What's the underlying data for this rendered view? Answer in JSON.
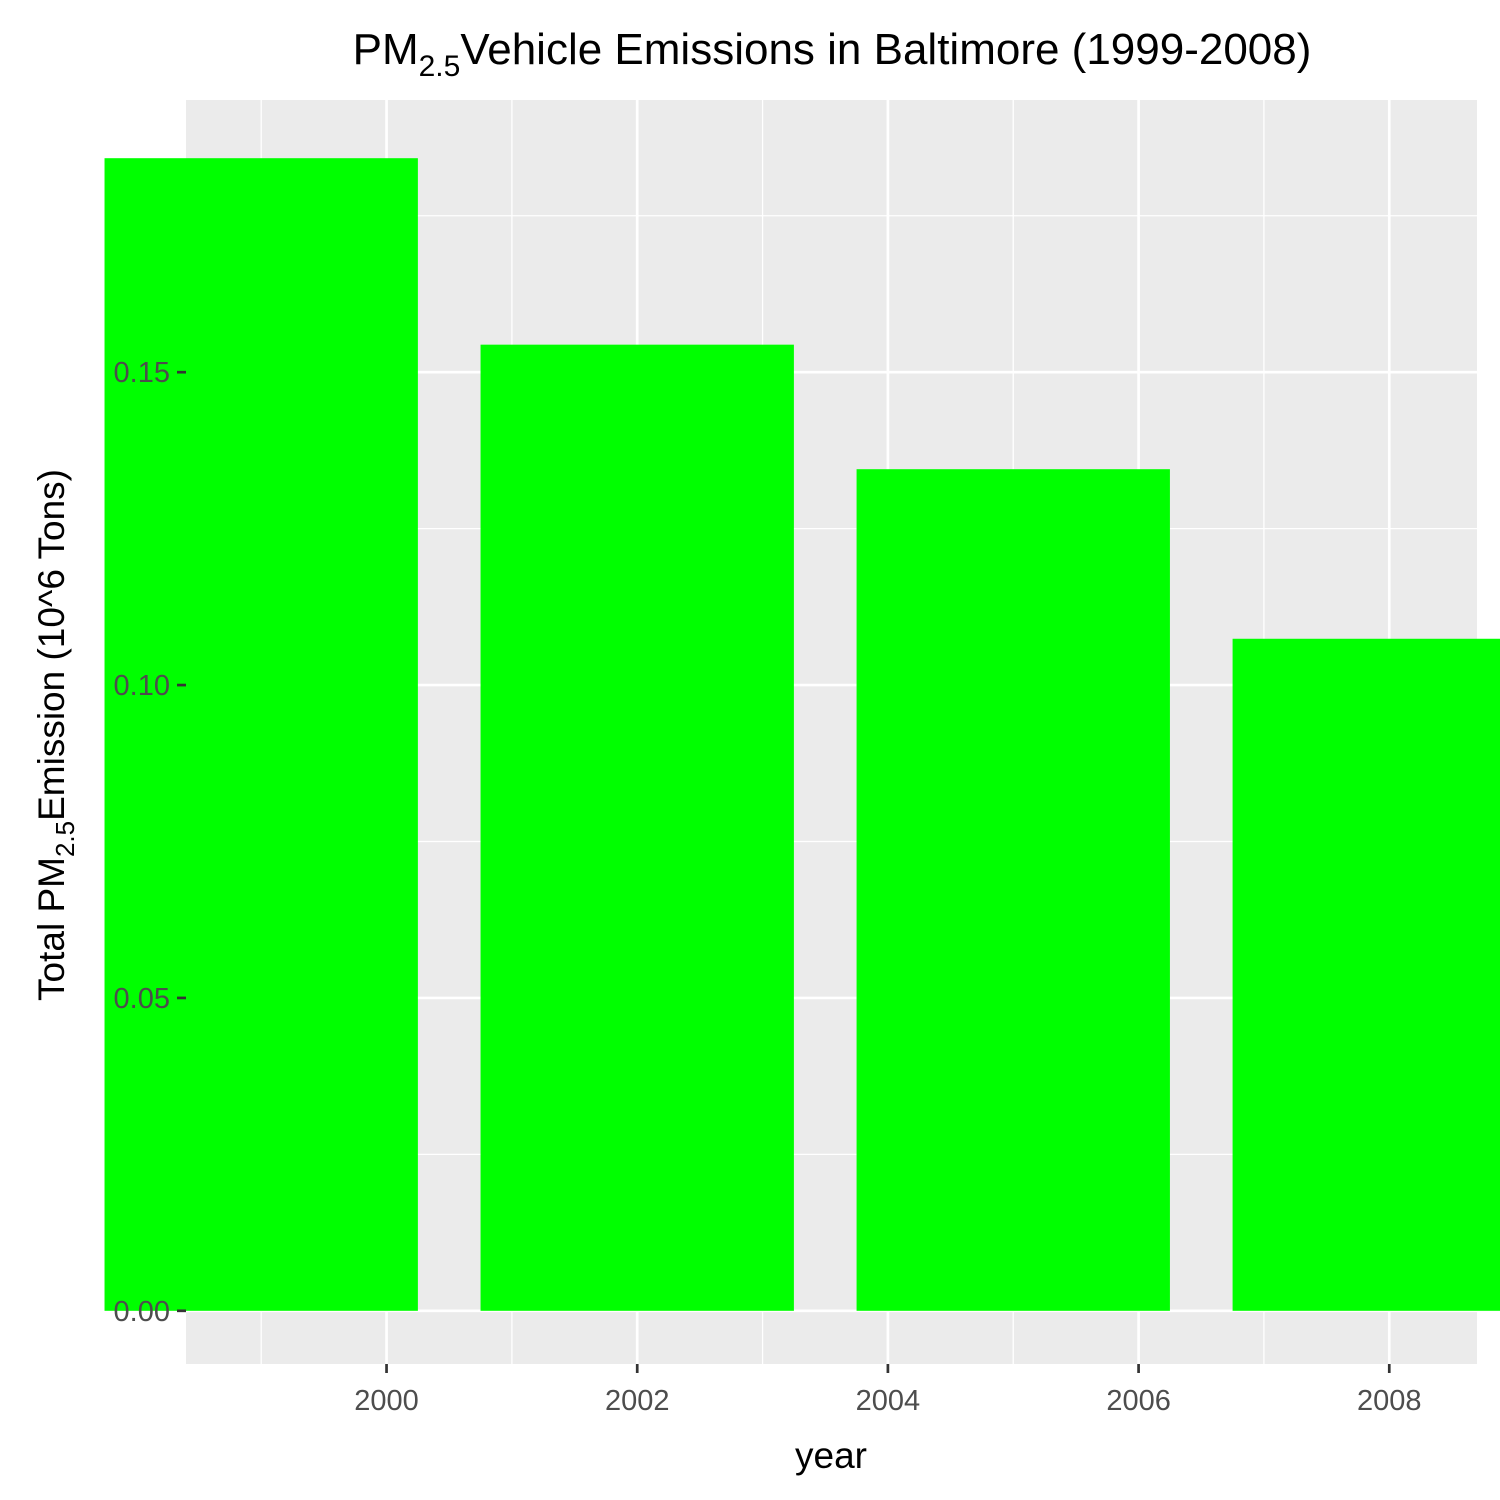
{
  "chart_data": {
    "type": "bar",
    "title": {
      "prefix": "PM",
      "subscript": "2.5",
      "suffix": "Vehicle Emissions in Baltimore (1999-2008)"
    },
    "xlabel": "year",
    "ylabel": {
      "prefix": "Total PM",
      "subscript": "2.5",
      "suffix": "Emission (10^6 Tons)"
    },
    "x": [
      1999,
      2002,
      2005,
      2008
    ],
    "values": [
      0.1842,
      0.1544,
      0.1345,
      0.1074
    ],
    "xlim": [
      1998.4,
      2008.7
    ],
    "ylim": [
      -0.0085,
      0.1935
    ],
    "x_ticks": [
      "2000",
      "2002",
      "2004",
      "2006",
      "2008"
    ],
    "y_ticks": [
      "0.00",
      "0.05",
      "0.10",
      "0.15"
    ],
    "bar_color": "#00ff00",
    "panel_background": "#ebebeb",
    "grid_color": "#ffffff",
    "grid": true,
    "legend": "none"
  }
}
